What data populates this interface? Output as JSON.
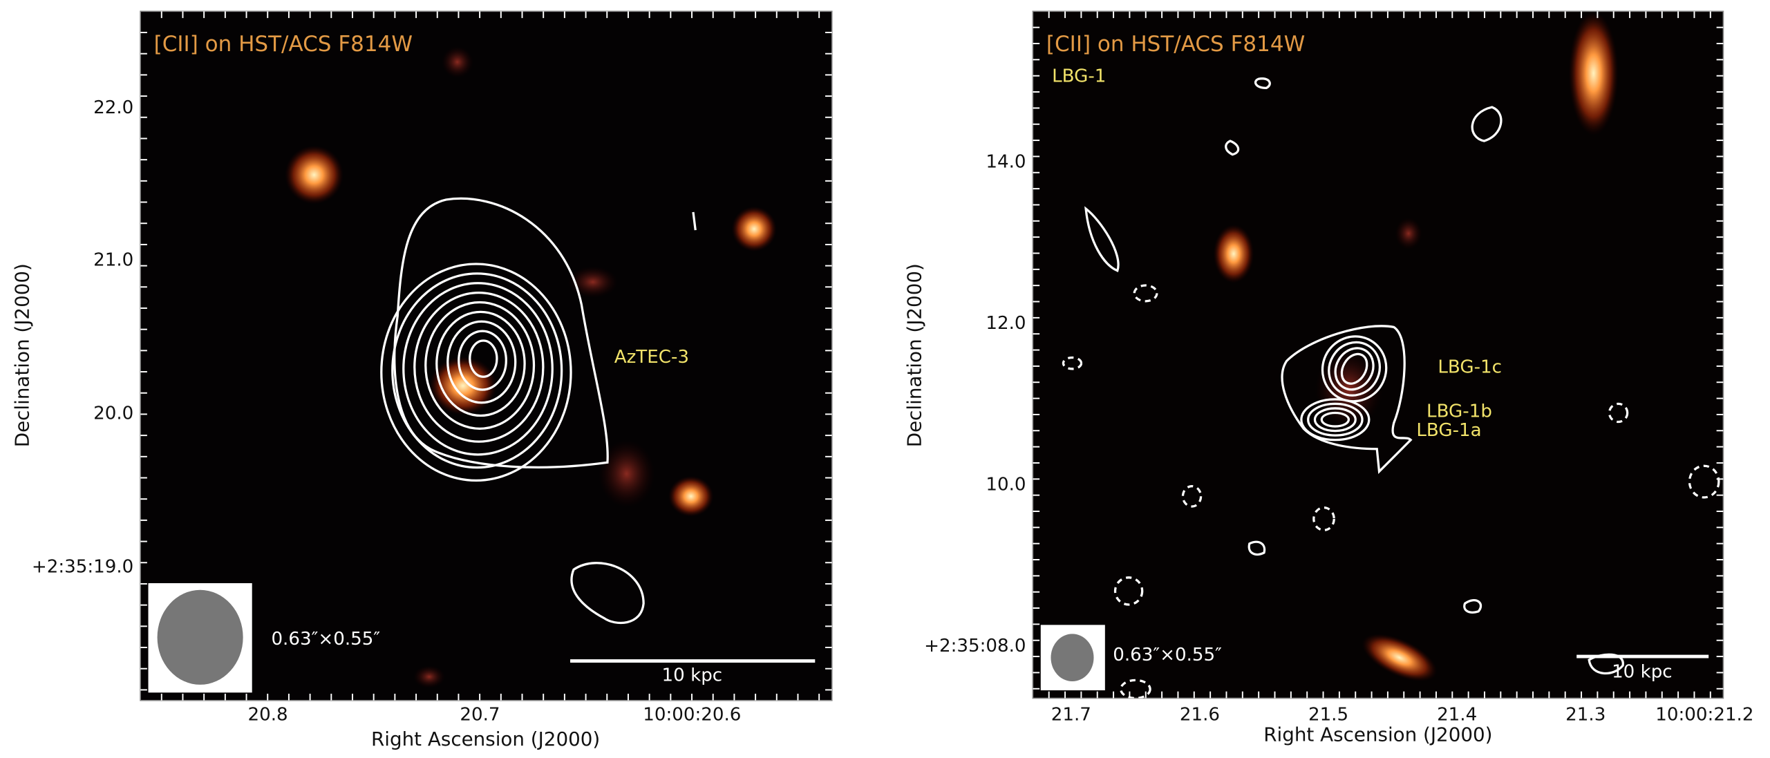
{
  "panels": [
    {
      "title": "[CII] on HST/ACS F814W",
      "x_axis_label": "Right Ascension (J2000)",
      "y_axis_label": "Declination (J2000)",
      "x_tick_labels": [
        "20.8",
        "20.7",
        "10:00:20.6"
      ],
      "y_tick_labels": [
        "22.0",
        "21.0",
        "20.0",
        "+2:35:19.0"
      ],
      "source_labels": [
        "AzTEC-3"
      ],
      "beam_label": "0.63″×0.55″",
      "scale_bar_label": "10 kpc"
    },
    {
      "title": "[CII] on HST/ACS F814W",
      "field_label": "LBG-1",
      "x_axis_label": "Right Ascension (J2000)",
      "y_axis_label": "Declination (J2000)",
      "x_tick_labels": [
        "21.7",
        "21.6",
        "21.5",
        "21.4",
        "21.3",
        "10:00:21.2"
      ],
      "y_tick_labels": [
        "14.0",
        "12.0",
        "10.0",
        "+2:35:08.0"
      ],
      "source_labels": [
        "LBG-1c",
        "LBG-1b",
        "LBG-1a"
      ],
      "beam_label": "0.63″×0.55″",
      "scale_bar_label": "10 kpc"
    }
  ]
}
